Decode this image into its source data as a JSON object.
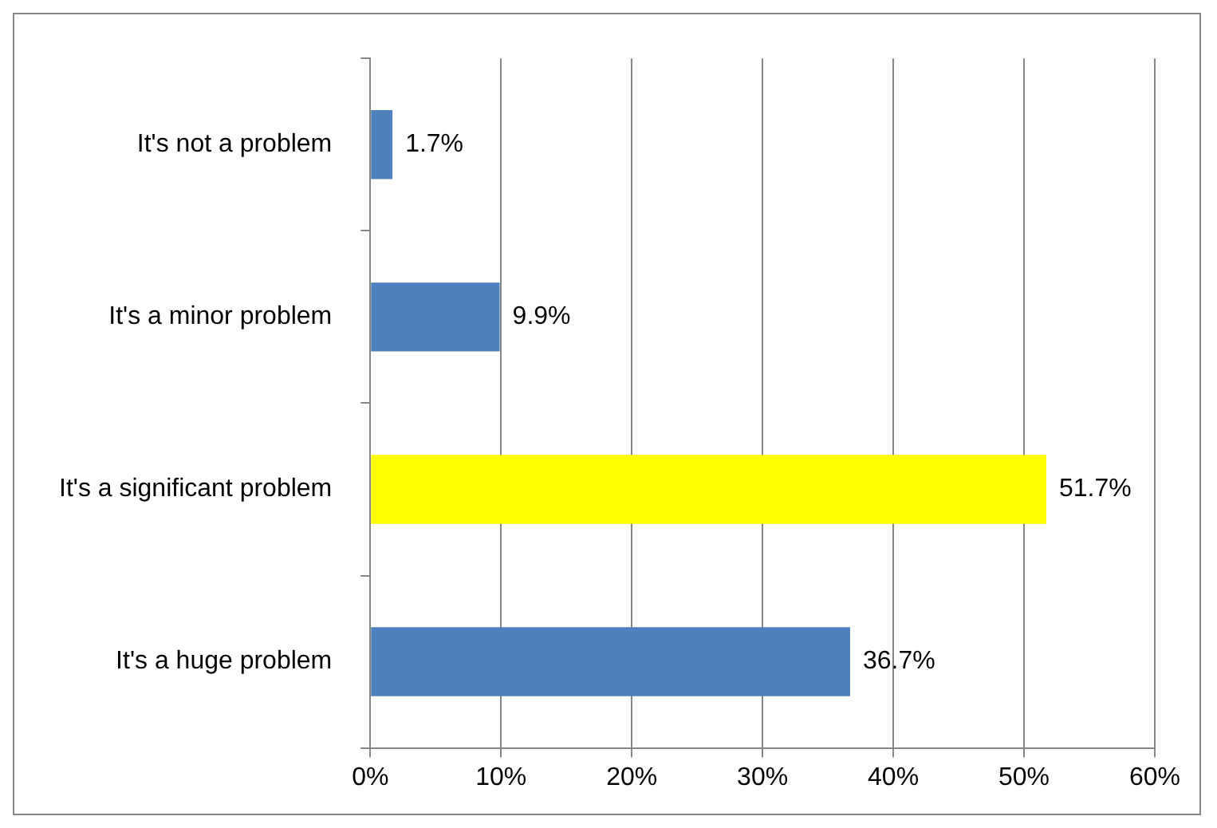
{
  "chart_data": {
    "type": "bar",
    "orientation": "horizontal",
    "categories": [
      "It's not a problem",
      "It's a minor problem",
      "It's a significant problem",
      "It's a huge problem"
    ],
    "values": [
      1.7,
      9.9,
      51.7,
      36.7
    ],
    "colors": [
      "#4f81bd",
      "#4f81bd",
      "#ffff00",
      "#4f81bd"
    ],
    "value_labels": [
      "1.7%",
      "9.9%",
      "51.7%",
      "36.7%"
    ],
    "xlim": [
      0,
      60
    ],
    "xticks": [
      {
        "value": 0,
        "label": "0%"
      },
      {
        "value": 10,
        "label": "10%"
      },
      {
        "value": 20,
        "label": "20%"
      },
      {
        "value": 30,
        "label": "30%"
      },
      {
        "value": 40,
        "label": "40%"
      },
      {
        "value": 50,
        "label": "50%"
      },
      {
        "value": 60,
        "label": "60%"
      }
    ],
    "grid": "x",
    "legend": false
  }
}
